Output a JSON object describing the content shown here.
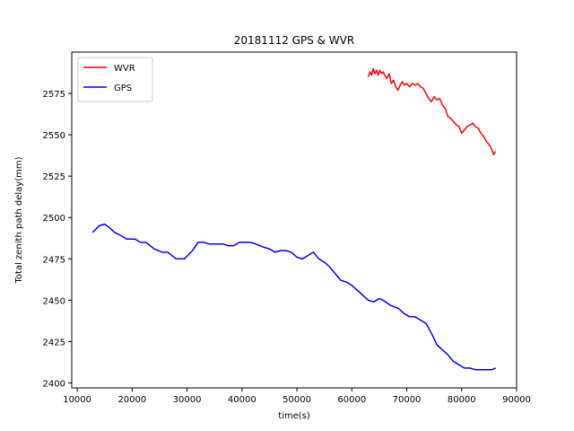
{
  "chart_data": {
    "type": "line",
    "title": "20181112 GPS & WVR",
    "xlabel": "time(s)",
    "ylabel": "Total zenith path delay(mm)",
    "xlim": [
      9000,
      90000
    ],
    "ylim": [
      2397,
      2600
    ],
    "xticks": [
      10000,
      20000,
      30000,
      40000,
      50000,
      60000,
      70000,
      80000,
      90000
    ],
    "yticks": [
      2400,
      2425,
      2450,
      2475,
      2500,
      2525,
      2550,
      2575
    ],
    "grid": false,
    "legend_position": "upper-left",
    "series": [
      {
        "name": "WVR",
        "color": "#ff0000",
        "x": [
          63000,
          63300,
          63600,
          63900,
          64200,
          64500,
          64800,
          65100,
          65400,
          65700,
          66000,
          66400,
          66800,
          67200,
          67600,
          68000,
          68400,
          68800,
          69200,
          69600,
          70000,
          70500,
          71000,
          71500,
          72000,
          72500,
          73000,
          73500,
          74000,
          74500,
          75000,
          75500,
          76000,
          76500,
          77000,
          77500,
          78000,
          78500,
          79000,
          79500,
          80000,
          80500,
          81000,
          81500,
          82000,
          82500,
          83000,
          83500,
          84000,
          84500,
          85000,
          85400,
          85800,
          86200
        ],
        "y": [
          2585,
          2588,
          2586,
          2590,
          2587,
          2589,
          2586,
          2589,
          2587,
          2588,
          2586,
          2584,
          2587,
          2581,
          2583,
          2579,
          2577,
          2580,
          2582,
          2580,
          2581,
          2579,
          2581,
          2580,
          2581,
          2579,
          2578,
          2575,
          2572,
          2570,
          2573,
          2571,
          2572,
          2568,
          2566,
          2561,
          2560,
          2558,
          2556,
          2555,
          2551,
          2553,
          2555,
          2556,
          2557,
          2555,
          2554,
          2551,
          2549,
          2546,
          2544,
          2542,
          2538,
          2540
        ]
      },
      {
        "name": "GPS",
        "color": "#0000ff",
        "x": [
          12800,
          14000,
          15000,
          15800,
          16800,
          18000,
          19000,
          20500,
          21500,
          22500,
          24000,
          25500,
          26500,
          28000,
          29500,
          31000,
          32000,
          33000,
          34000,
          35500,
          36500,
          37500,
          38500,
          39500,
          40500,
          41500,
          42500,
          44000,
          45000,
          46000,
          47000,
          48000,
          49000,
          50000,
          51000,
          52000,
          53000,
          54000,
          55000,
          56000,
          57000,
          58000,
          59000,
          60000,
          61000,
          62000,
          63000,
          64000,
          65000,
          65700,
          67000,
          68500,
          69500,
          70500,
          71500,
          72500,
          73500,
          74500,
          75500,
          76500,
          77500,
          78500,
          79500,
          80500,
          81500,
          82500,
          83500,
          84500,
          85500,
          86200
        ],
        "y": [
          2491,
          2495,
          2496,
          2494,
          2491,
          2489,
          2487,
          2487,
          2485,
          2485,
          2481,
          2479,
          2479,
          2475,
          2475,
          2480,
          2485,
          2485,
          2484,
          2484,
          2484,
          2483,
          2483,
          2485,
          2485,
          2485,
          2484,
          2482,
          2481,
          2479,
          2480,
          2480,
          2479,
          2476,
          2475,
          2477,
          2479,
          2475,
          2473,
          2470,
          2466,
          2462,
          2461,
          2459,
          2456,
          2453,
          2450,
          2449,
          2451,
          2450,
          2447,
          2445,
          2442,
          2440,
          2440,
          2438,
          2436,
          2430,
          2423,
          2420,
          2417,
          2413,
          2411,
          2409,
          2409,
          2408,
          2408,
          2408,
          2408,
          2409
        ]
      }
    ]
  }
}
